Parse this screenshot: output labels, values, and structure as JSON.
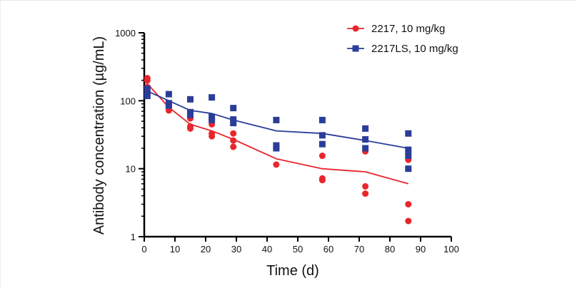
{
  "chart_data": {
    "type": "scatter",
    "xlabel": "Time (d)",
    "ylabel": "Antibody concentration (µg/mL)",
    "xlim": [
      0,
      100
    ],
    "ylim": [
      1,
      1000
    ],
    "yscale": "log",
    "xticks": [
      0,
      10,
      20,
      30,
      40,
      50,
      60,
      70,
      80,
      90,
      100
    ],
    "yticks": [
      1,
      10,
      100,
      1000
    ],
    "grid": false,
    "legend_position": "top-right",
    "series": [
      {
        "name": "2217, 10 mg/kg",
        "color": "#e8262c",
        "marker": "circle",
        "points": [
          [
            1,
            215
          ],
          [
            1,
            200
          ],
          [
            1,
            160
          ],
          [
            8,
            82
          ],
          [
            8,
            78
          ],
          [
            8,
            72
          ],
          [
            15,
            55
          ],
          [
            15,
            42
          ],
          [
            15,
            39
          ],
          [
            22,
            45
          ],
          [
            22,
            33
          ],
          [
            22,
            30
          ],
          [
            29,
            33
          ],
          [
            29,
            26
          ],
          [
            29,
            21
          ],
          [
            43,
            20
          ],
          [
            43,
            11.5
          ],
          [
            58,
            15.5
          ],
          [
            58,
            7.2
          ],
          [
            58,
            6.8
          ],
          [
            72,
            18
          ],
          [
            72,
            5.5
          ],
          [
            72,
            4.3
          ],
          [
            86,
            13.5
          ],
          [
            86,
            3.0
          ],
          [
            86,
            1.7
          ]
        ],
        "fit_line": [
          [
            0,
            200
          ],
          [
            8,
            80
          ],
          [
            15,
            45
          ],
          [
            22,
            36
          ],
          [
            29,
            27
          ],
          [
            43,
            14
          ],
          [
            58,
            10
          ],
          [
            72,
            9
          ],
          [
            86,
            6
          ]
        ]
      },
      {
        "name": "2217LS, 10 mg/kg",
        "color": "#2b3d99",
        "marker": "square",
        "points": [
          [
            1,
            150
          ],
          [
            1,
            130
          ],
          [
            1,
            118
          ],
          [
            8,
            125
          ],
          [
            8,
            92
          ],
          [
            8,
            85
          ],
          [
            15,
            105
          ],
          [
            15,
            68
          ],
          [
            15,
            62
          ],
          [
            22,
            112
          ],
          [
            22,
            58
          ],
          [
            22,
            52
          ],
          [
            29,
            78
          ],
          [
            29,
            53
          ],
          [
            29,
            47
          ],
          [
            43,
            52
          ],
          [
            43,
            22
          ],
          [
            43,
            20
          ],
          [
            58,
            52
          ],
          [
            58,
            31
          ],
          [
            58,
            23
          ],
          [
            72,
            39
          ],
          [
            72,
            27
          ],
          [
            72,
            20
          ],
          [
            86,
            33
          ],
          [
            86,
            19
          ],
          [
            86,
            15.5
          ],
          [
            86,
            10
          ]
        ],
        "fit_line": [
          [
            0,
            145
          ],
          [
            8,
            100
          ],
          [
            15,
            72
          ],
          [
            22,
            65
          ],
          [
            29,
            52
          ],
          [
            43,
            36
          ],
          [
            58,
            33
          ],
          [
            72,
            26
          ],
          [
            86,
            20
          ]
        ]
      }
    ]
  }
}
